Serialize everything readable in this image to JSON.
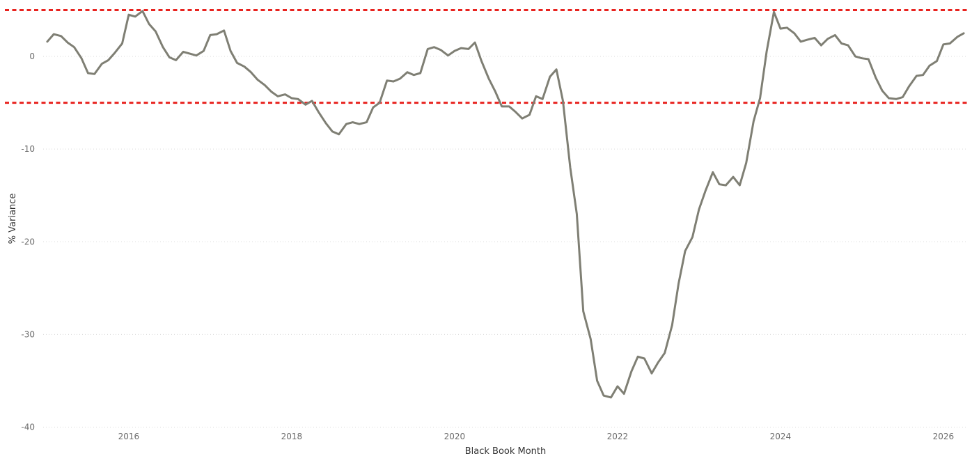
{
  "chart_data": {
    "type": "line",
    "title": "",
    "xlabel": "Black Book Month",
    "ylabel": "% Variance",
    "xlim": [
      2014.95,
      2026.3
    ],
    "ylim": [
      -40,
      5
    ],
    "x_ticks": [
      2016,
      2018,
      2020,
      2022,
      2024,
      2026
    ],
    "y_ticks": [
      0,
      -10,
      -20,
      -30,
      -40
    ],
    "grid": true,
    "legend": "none",
    "colors": {
      "series": "#7f7f74",
      "reference": "#e8231f",
      "grid": "#d9d9d9"
    },
    "reference_lines": [
      5,
      -5
    ],
    "series": [
      {
        "x": [
          2015.0,
          2015.08,
          2015.17,
          2015.25,
          2015.33,
          2015.42,
          2015.5,
          2015.58,
          2015.67,
          2015.75,
          2015.83,
          2015.92,
          2016.0,
          2016.08,
          2016.17,
          2016.25,
          2016.33,
          2016.42,
          2016.5,
          2016.58,
          2016.67,
          2016.75,
          2016.83,
          2016.92,
          2017.0,
          2017.08,
          2017.17,
          2017.25,
          2017.33,
          2017.42,
          2017.5,
          2017.58,
          2017.67,
          2017.75,
          2017.83,
          2017.92,
          2018.0,
          2018.08,
          2018.17,
          2018.25,
          2018.33,
          2018.42,
          2018.5,
          2018.58,
          2018.67,
          2018.75,
          2018.83,
          2018.92,
          2019.0,
          2019.08,
          2019.17,
          2019.25,
          2019.33,
          2019.42,
          2019.5,
          2019.58,
          2019.67,
          2019.75,
          2019.83,
          2019.92,
          2020.0,
          2020.08,
          2020.17,
          2020.25,
          2020.33,
          2020.42,
          2020.5,
          2020.58,
          2020.67,
          2020.75,
          2020.83,
          2020.92,
          2021.0,
          2021.08,
          2021.17,
          2021.25,
          2021.33,
          2021.42,
          2021.5,
          2021.58,
          2021.67,
          2021.75,
          2021.83,
          2021.92,
          2022.0,
          2022.08,
          2022.17,
          2022.25,
          2022.33,
          2022.42,
          2022.5,
          2022.58,
          2022.67,
          2022.75,
          2022.83,
          2022.92,
          2023.0,
          2023.08,
          2023.17,
          2023.25,
          2023.33,
          2023.42,
          2023.5,
          2023.58,
          2023.67,
          2023.75,
          2023.83,
          2023.92,
          2024.0,
          2024.08,
          2024.17,
          2024.25,
          2024.33,
          2024.42,
          2024.5,
          2024.58,
          2024.67,
          2024.75,
          2024.83,
          2024.92,
          2025.0,
          2025.08,
          2025.17,
          2025.25,
          2025.33,
          2025.42,
          2025.5,
          2025.58,
          2025.67,
          2025.75,
          2025.83,
          2025.92,
          2026.0,
          2026.08,
          2026.17,
          2026.25
        ],
        "values": [
          1.6,
          2.4,
          2.2,
          1.5,
          1.0,
          -0.2,
          -1.8,
          -1.9,
          -0.8,
          -0.4,
          0.4,
          1.4,
          4.5,
          4.3,
          4.9,
          3.5,
          2.7,
          1.0,
          -0.1,
          -0.4,
          0.5,
          0.3,
          0.1,
          0.6,
          2.3,
          2.4,
          2.8,
          0.6,
          -0.7,
          -1.1,
          -1.7,
          -2.5,
          -3.1,
          -3.8,
          -4.3,
          -4.1,
          -4.5,
          -4.6,
          -5.2,
          -4.8,
          -6.0,
          -7.2,
          -8.1,
          -8.4,
          -7.3,
          -7.1,
          -7.3,
          -7.1,
          -5.5,
          -5.0,
          -2.6,
          -2.7,
          -2.4,
          -1.7,
          -2.0,
          -1.8,
          0.8,
          1.0,
          0.7,
          0.1,
          0.6,
          0.9,
          0.8,
          1.5,
          -0.5,
          -2.4,
          -3.8,
          -5.4,
          -5.4,
          -6.0,
          -6.7,
          -6.3,
          -4.3,
          -4.6,
          -2.2,
          -1.4,
          -4.8,
          -12.0,
          -17.0,
          -27.5,
          -30.5,
          -35.0,
          -36.6,
          -36.8,
          -35.6,
          -36.4,
          -34.0,
          -32.4,
          -32.6,
          -34.2,
          -33.0,
          -32.0,
          -29.0,
          -24.5,
          -21.0,
          -19.5,
          -16.5,
          -14.5,
          -12.5,
          -13.8,
          -13.9,
          -13.0,
          -13.9,
          -11.5,
          -7.0,
          -4.5,
          0.5,
          4.8,
          3.0,
          3.1,
          2.5,
          1.6,
          1.8,
          2.0,
          1.2,
          1.9,
          2.3,
          1.4,
          1.2,
          0.0,
          -0.2,
          -0.3,
          -2.3,
          -3.7,
          -4.5,
          -4.6,
          -4.4,
          -3.2,
          -2.1,
          -2.0,
          -1.0,
          -0.5,
          1.3,
          1.4,
          2.1,
          2.5
        ]
      }
    ]
  }
}
